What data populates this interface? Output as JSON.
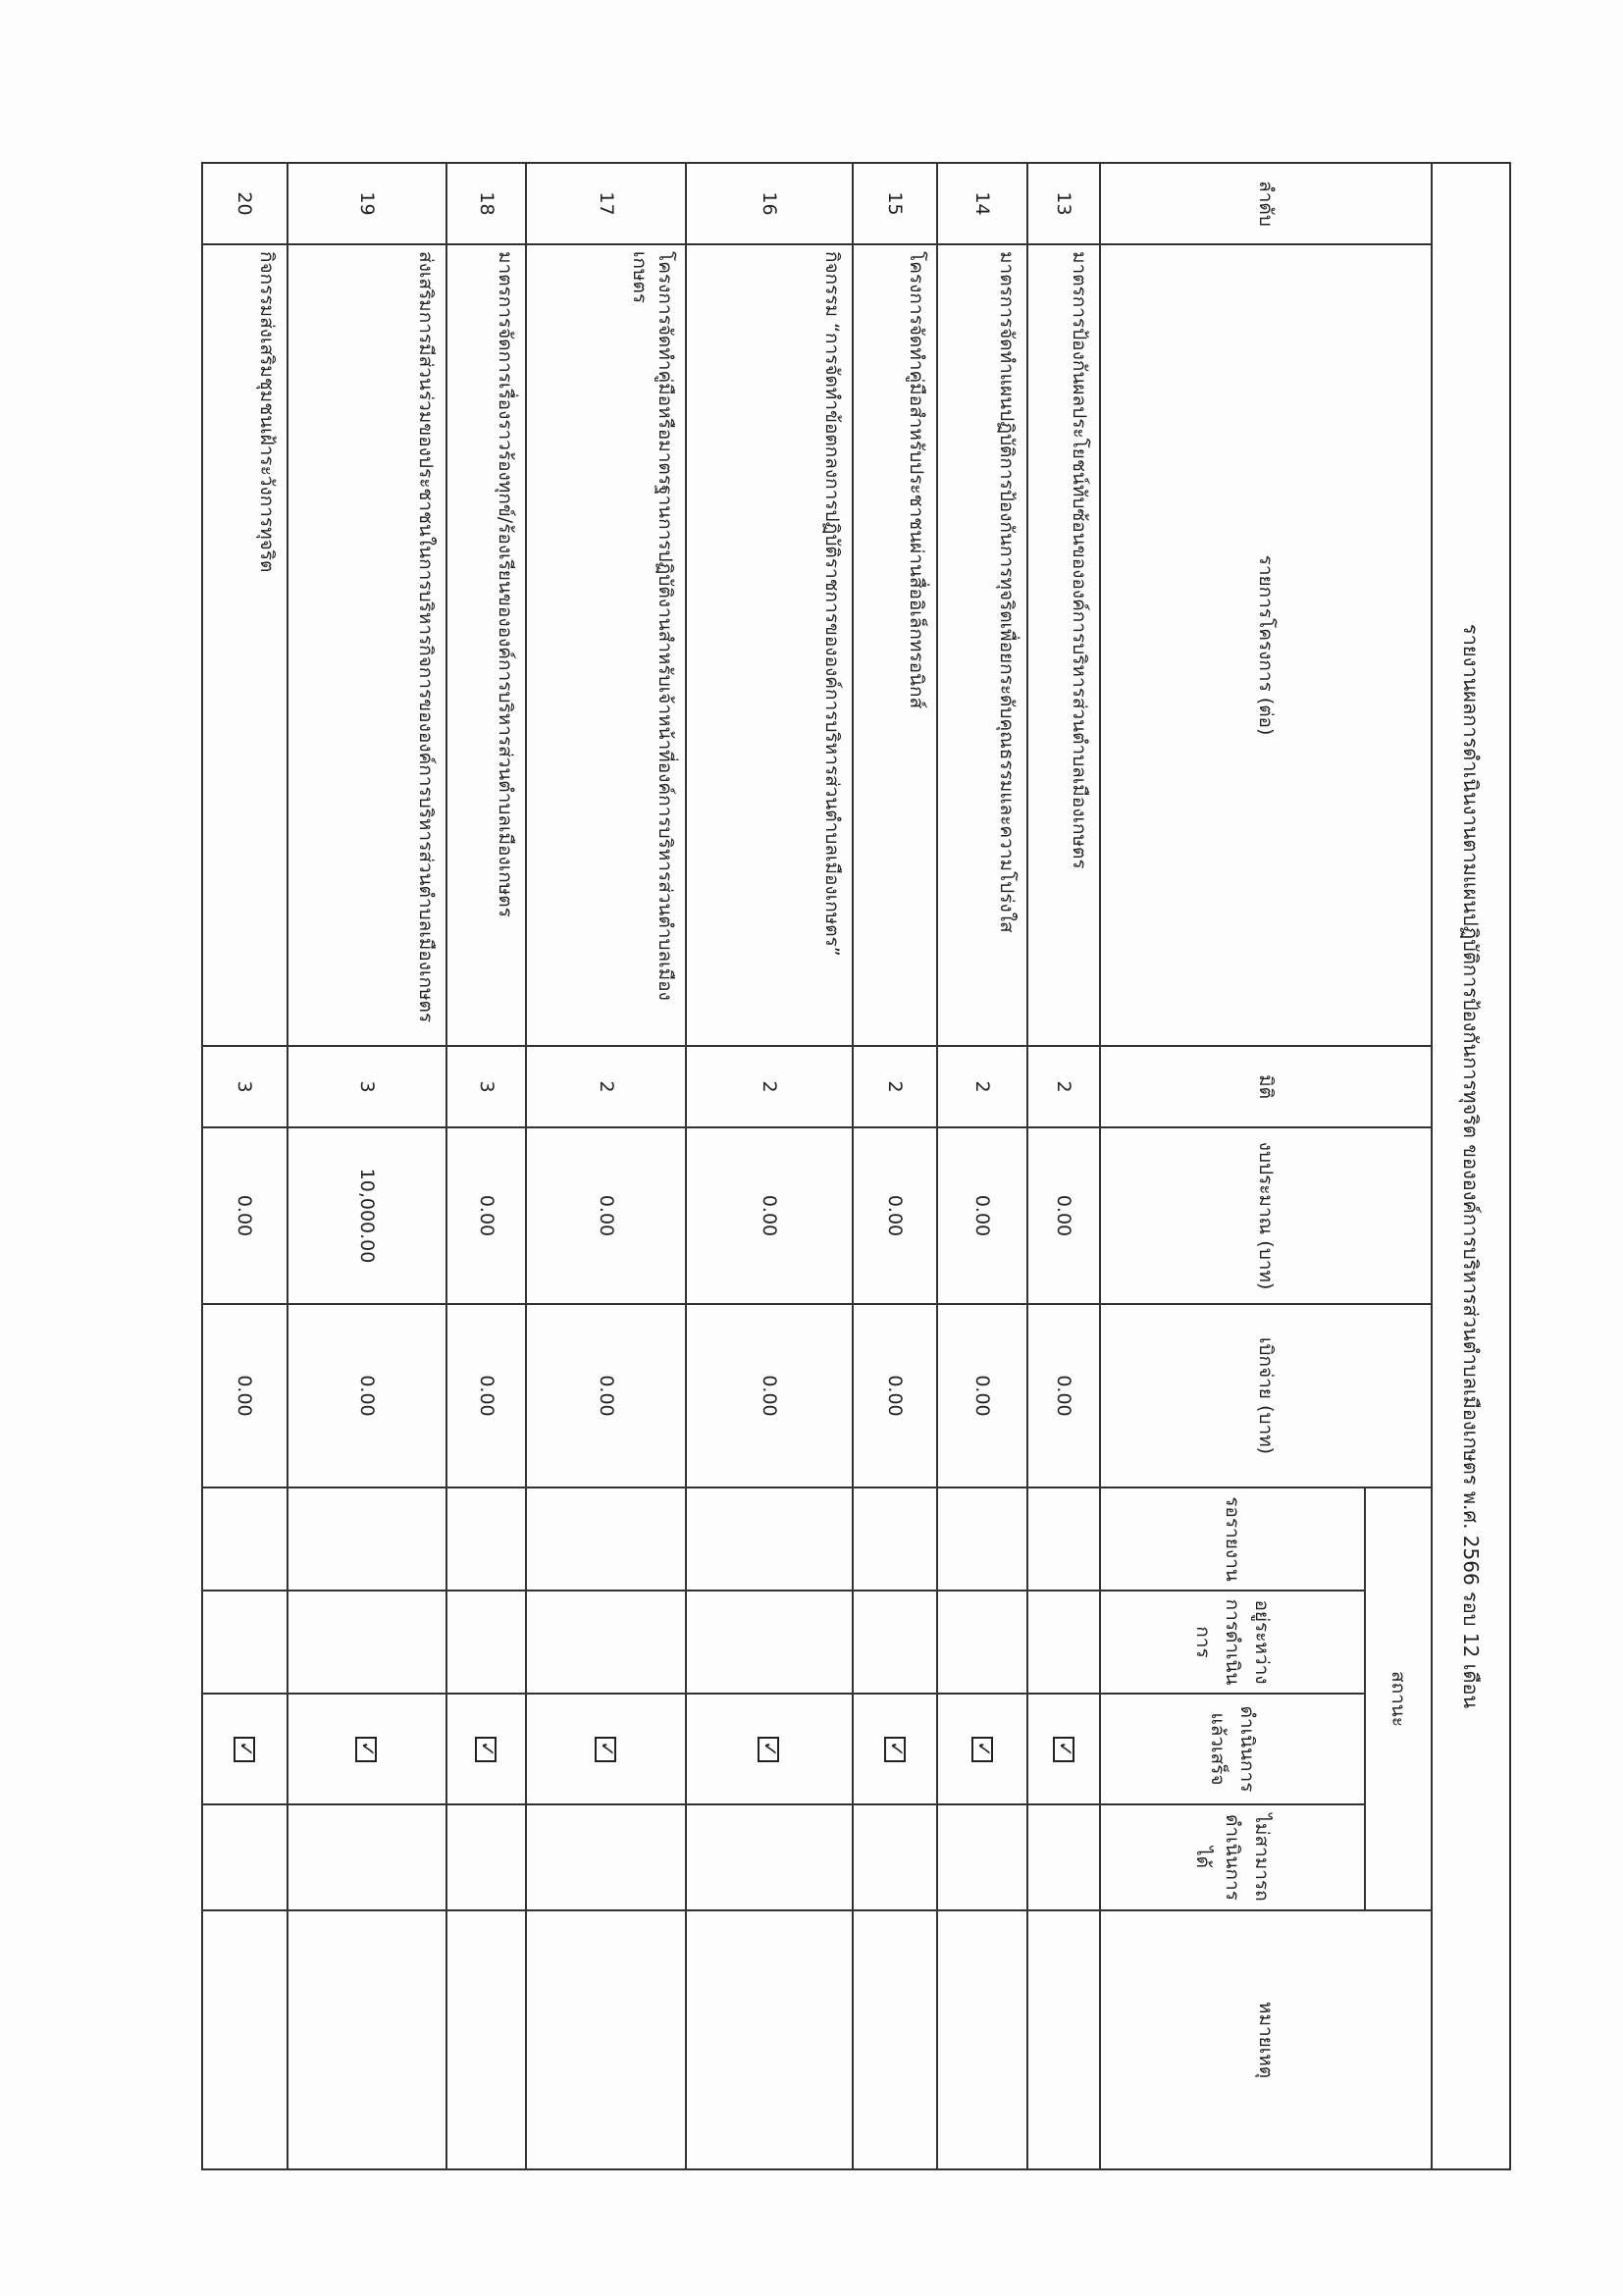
{
  "title": "รายงานผลการดำเนินงานตามแผนปฏิบัติการป้องกันการทุจริต ขององค์การบริหารส่วนตำบลเมืองเกษตร พ.ศ. 2566 รอบ 12 เดือน",
  "headers": {
    "no": "ลำดับ",
    "project": "รายการโครงการ (ต่อ)",
    "dimension": "มิติ",
    "budget": "งบประมาณ (บาท)",
    "disbursed": "เบิกจ่าย (บาท)",
    "status": "สถานะ",
    "status_waiting": "รอรายงาน",
    "status_in_progress": "อยู่ระหว่างการดำเนินการ",
    "status_done": "ดำเนินการแล้วเสร็จ",
    "status_unable": "ไม่สามารถดำเนินการได้",
    "remark": "หมายเหตุ"
  },
  "check_icon": "checkbox-checked-icon",
  "rows": [
    {
      "no": "13",
      "project": "มาตรการป้องกันผลประโยชน์ทับซ้อนขององค์การบริหารส่วนตำบลเมืองเกษตร",
      "dimension": "2",
      "budget": "0.00",
      "disbursed": "0.00",
      "status": "done"
    },
    {
      "no": "14",
      "project": "มาตรการจัดทำแผนปฏิบัติการป้องกันการทุจริตเพื่อยกระดับคุณธรรมและความโปร่งใส",
      "dimension": "2",
      "budget": "0.00",
      "disbursed": "0.00",
      "status": "done"
    },
    {
      "no": "15",
      "project": "โครงการจัดทำคู่มือสำหรับประชาชนผ่านสื่ออิเล็กทรอนิกส์",
      "dimension": "2",
      "budget": "0.00",
      "disbursed": "0.00",
      "status": "done"
    },
    {
      "no": "16",
      "project": "กิจกรรม “การจัดทำข้อตกลงการปฏิบัติราชการขององค์การบริหารส่วนตำบลเมืองเกษตร”",
      "dimension": "2",
      "budget": "0.00",
      "disbursed": "0.00",
      "status": "done"
    },
    {
      "no": "17",
      "project": "โครงการจัดทำคู่มือหรือมาตรฐานการปฏิบัติงานสำหรับเจ้าหน้าที่องค์การบริหารส่วนตำบลเมืองเกษตร",
      "dimension": "2",
      "budget": "0.00",
      "disbursed": "0.00",
      "status": "done"
    },
    {
      "no": "18",
      "project": "มาตรการจัดการเรื่องราวร้องทุกข์/ร้องเรียนขององค์การบริหารส่วนตำบลเมืองเกษตร",
      "dimension": "3",
      "budget": "0.00",
      "disbursed": "0.00",
      "status": "done"
    },
    {
      "no": "19",
      "project": "ส่งเสริมการมีส่วนร่วมของประชาชนในการบริหารกิจการขององค์การบริหารส่วนตำบลเมืองเกษตร",
      "dimension": "3",
      "budget": "10,000.00",
      "disbursed": "0.00",
      "status": "done"
    },
    {
      "no": "20",
      "project": "กิจกรรมส่งเสริมชุมชนเฝ้าระวังการทุจริต",
      "dimension": "3",
      "budget": "0.00",
      "disbursed": "0.00",
      "status": "done"
    }
  ]
}
